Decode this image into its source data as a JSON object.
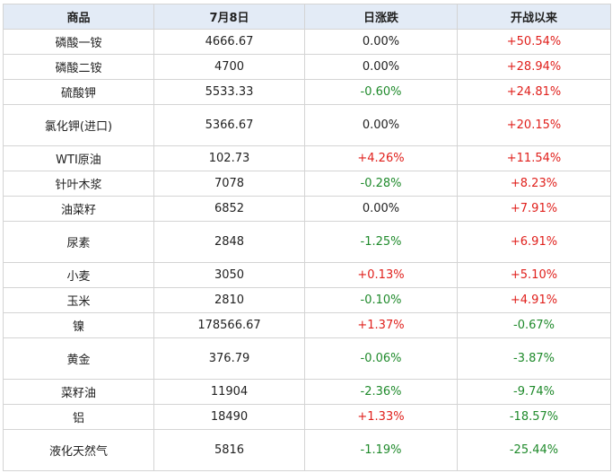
{
  "table": {
    "header": [
      "商品",
      "7月8日",
      "日涨跌",
      "开战以来"
    ],
    "rows": [
      [
        "磷酸一铵",
        "4666.67",
        "0.00%",
        "+50.54%"
      ],
      [
        "磷酸二铵",
        "4700",
        "0.00%",
        "+28.94%"
      ],
      [
        "硫酸钾",
        "5533.33",
        "-0.60%",
        "+24.81%"
      ],
      [
        "氯化钾(进口)",
        "5366.67",
        "0.00%",
        "+20.15%"
      ],
      [
        "WTI原油",
        "102.73",
        "+4.26%",
        "+11.54%"
      ],
      [
        "针叶木浆",
        "7078",
        "-0.28%",
        "+8.23%"
      ],
      [
        "油菜籽",
        "6852",
        "0.00%",
        "+7.91%"
      ],
      [
        "尿素",
        "2848",
        "-1.25%",
        "+6.91%"
      ],
      [
        "小麦",
        "3050",
        "+0.13%",
        "+5.10%"
      ],
      [
        "玉米",
        "2810",
        "-0.10%",
        "+4.91%"
      ],
      [
        "镍",
        "178566.67",
        "+1.37%",
        "-0.67%"
      ],
      [
        "黄金",
        "376.79",
        "-0.06%",
        "-3.87%"
      ],
      [
        "菜籽油",
        "11904",
        "-2.36%",
        "-9.74%"
      ],
      [
        "铝",
        "18490",
        "+1.33%",
        "-18.57%"
      ],
      [
        "液化天然气",
        "5816",
        "-1.19%",
        "-25.44%"
      ]
    ]
  }
}
